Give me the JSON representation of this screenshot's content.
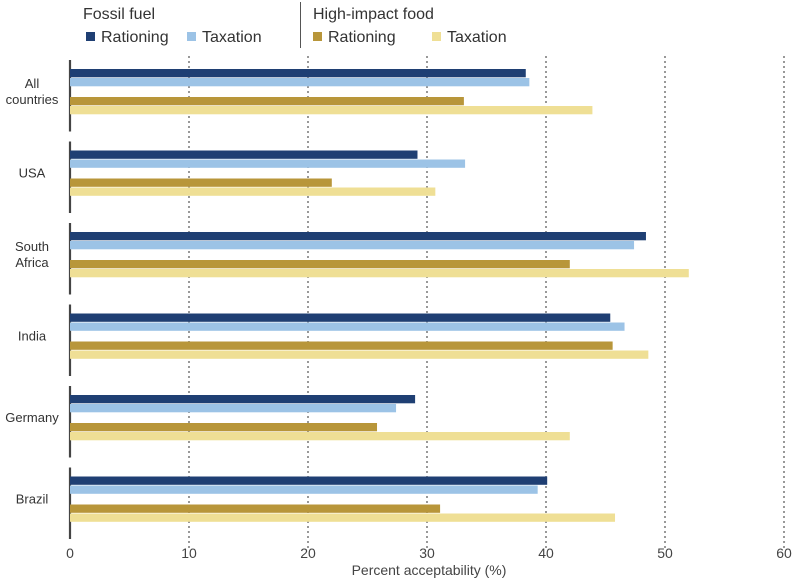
{
  "legend": {
    "groups": [
      {
        "title": "Fossil fuel",
        "items": [
          {
            "label": "Rationing",
            "color": "#1f3f73"
          },
          {
            "label": "Taxation",
            "color": "#9cc3e6"
          }
        ]
      },
      {
        "title": "High-impact food",
        "items": [
          {
            "label": "Rationing",
            "color": "#b8963a"
          },
          {
            "label": "Taxation",
            "color": "#efdf95"
          }
        ]
      }
    ]
  },
  "chart_data": {
    "type": "bar",
    "orientation": "horizontal",
    "categories": [
      "All countries",
      "USA",
      "South Africa",
      "India",
      "Germany",
      "Brazil"
    ],
    "category_label_lines": [
      [
        "All",
        "countries"
      ],
      [
        "USA"
      ],
      [
        "South",
        "Africa"
      ],
      [
        "India"
      ],
      [
        "Germany"
      ],
      [
        "Brazil"
      ]
    ],
    "series": [
      {
        "name": "Fossil fuel Rationing",
        "color": "#1f3f73",
        "values": [
          38.3,
          29.2,
          48.4,
          45.4,
          29.0,
          40.1
        ]
      },
      {
        "name": "Fossil fuel Taxation",
        "color": "#9cc3e6",
        "values": [
          38.6,
          33.2,
          47.4,
          46.6,
          27.4,
          39.3
        ]
      },
      {
        "name": "High-impact food Rationing",
        "color": "#b8963a",
        "values": [
          33.1,
          22.0,
          42.0,
          45.6,
          25.8,
          31.1
        ]
      },
      {
        "name": "High-impact food Taxation",
        "color": "#efdf95",
        "values": [
          43.9,
          30.7,
          52.0,
          48.6,
          42.0,
          45.8
        ]
      }
    ],
    "xlabel": "Percent acceptability (%)",
    "ylabel": "",
    "xlim": [
      0,
      60
    ],
    "xticks": [
      0,
      10,
      20,
      30,
      40,
      50,
      60
    ],
    "grid": "vertical dotted"
  }
}
